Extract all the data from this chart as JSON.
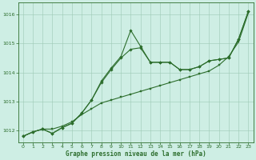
{
  "title": "Graphe pression niveau de la mer (hPa)",
  "background_color": "#ceeee4",
  "grid_color": "#9dc9b5",
  "line_color": "#2d6e2d",
  "xlim": [
    -0.5,
    23.5
  ],
  "ylim": [
    1011.6,
    1016.4
  ],
  "yticks": [
    1012,
    1013,
    1014,
    1015,
    1016
  ],
  "xticks": [
    0,
    1,
    2,
    3,
    4,
    5,
    6,
    7,
    8,
    9,
    10,
    11,
    12,
    13,
    14,
    15,
    16,
    17,
    18,
    19,
    20,
    21,
    22,
    23
  ],
  "series": [
    {
      "x": [
        0,
        1,
        2,
        3,
        4,
        5,
        6,
        7,
        8,
        9,
        10,
        11,
        12,
        13,
        14,
        15,
        16,
        17,
        18,
        19,
        20,
        21,
        22,
        23
      ],
      "y": [
        1011.8,
        1011.95,
        1012.05,
        1012.05,
        1012.15,
        1012.3,
        1012.55,
        1012.75,
        1012.95,
        1013.05,
        1013.15,
        1013.25,
        1013.35,
        1013.45,
        1013.55,
        1013.65,
        1013.75,
        1013.85,
        1013.95,
        1014.05,
        1014.25,
        1014.55,
        1015.05,
        1016.05
      ]
    },
    {
      "x": [
        0,
        1,
        2,
        3,
        4,
        5,
        6,
        7,
        8,
        9,
        10,
        11,
        12,
        13,
        14,
        15,
        16,
        17,
        18,
        19,
        20,
        21,
        22,
        23
      ],
      "y": [
        1011.8,
        1011.95,
        1012.05,
        1011.9,
        1012.1,
        1012.25,
        1012.6,
        1013.05,
        1013.65,
        1014.1,
        1014.5,
        1014.8,
        1014.85,
        1014.35,
        1014.35,
        1014.35,
        1014.1,
        1014.1,
        1014.2,
        1014.4,
        1014.45,
        1014.5,
        1015.15,
        1016.1
      ]
    },
    {
      "x": [
        0,
        1,
        2,
        3,
        4,
        5,
        6,
        7,
        8,
        9,
        10,
        11,
        12,
        13,
        14,
        15,
        16,
        17,
        18,
        19,
        20,
        21,
        22,
        23
      ],
      "y": [
        1011.8,
        1011.95,
        1012.05,
        1011.9,
        1012.1,
        1012.25,
        1012.6,
        1013.05,
        1013.7,
        1014.15,
        1014.55,
        1015.45,
        1014.9,
        1014.35,
        1014.35,
        1014.35,
        1014.1,
        1014.1,
        1014.2,
        1014.4,
        1014.45,
        1014.5,
        1015.15,
        1016.1
      ]
    }
  ]
}
